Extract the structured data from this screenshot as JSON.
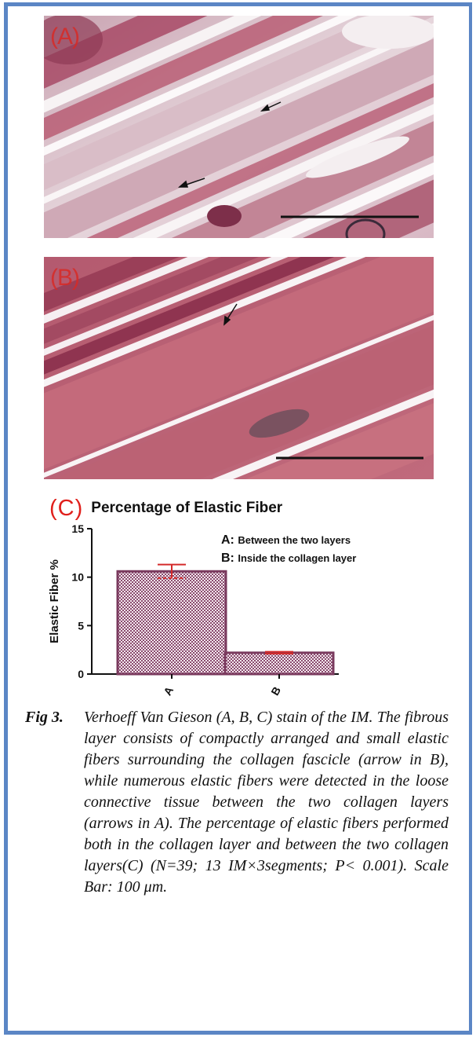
{
  "figure": {
    "panel_a_label": "(A)",
    "panel_b_label": "(B)",
    "panel_c_letter": "(C)",
    "panel_c_title": "Percentage of Elastic Fiber",
    "caption_label": "Fig 3.",
    "caption_text": "Verhoeff Van Gieson (A, B, C) stain of the IM. The fibrous layer consists of compactly arranged and small elastic fibers surrounding the collagen fascicle (arrow in B), while numerous elastic fibers were detected in the loose connective tissue between the two collagen layers (arrows in A). The percentage of elastic fibers performed both in the collagen layer and between the two collagen layers(C) (N=39; 13 IM×3segments; P< 0.001). Scale Bar: 100 μm."
  },
  "colors": {
    "border": "#5b86c5",
    "label_red": "#d82a26",
    "bar_outline": "#7a3a5e",
    "error_bar": "#d42a2a"
  },
  "chart_data": {
    "type": "bar",
    "categories": [
      "A",
      "B"
    ],
    "values": [
      10.6,
      2.2
    ],
    "errors": [
      0.7,
      0.1
    ],
    "ylabel": "Elastic Fiber %",
    "ylim": [
      0,
      15
    ],
    "yticks": [
      "0",
      "5",
      "10",
      "15"
    ],
    "grid": false,
    "legend_placement": "top-right",
    "legend": [
      {
        "key": "A:",
        "text": "Between the two layers"
      },
      {
        "key": "B:",
        "text": "Inside the  collagen layer"
      }
    ]
  }
}
